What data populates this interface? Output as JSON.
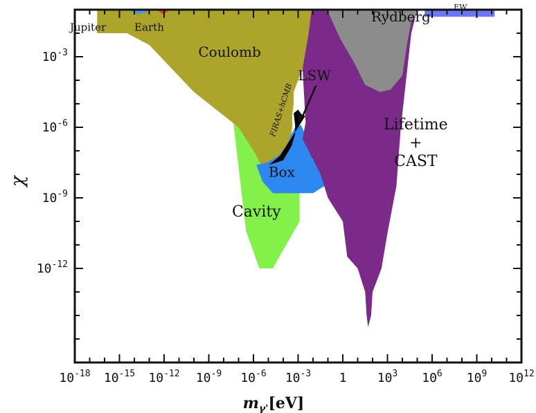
{
  "chart_data": {
    "type": "area",
    "title": "",
    "xlabel": "m_{γ'} [eV]",
    "ylabel": "χ",
    "xscale": "log",
    "yscale": "log",
    "xlim": [
      1e-18,
      1000000000000.0
    ],
    "ylim": [
      1e-16,
      0.1
    ],
    "x_ticks": [
      {
        "value": 1e-18,
        "base": "10",
        "exp": "-18"
      },
      {
        "value": 1e-15,
        "base": "10",
        "exp": "-15"
      },
      {
        "value": 1e-12,
        "base": "10",
        "exp": "-12"
      },
      {
        "value": 1e-09,
        "base": "10",
        "exp": "-9"
      },
      {
        "value": 1e-06,
        "base": "10",
        "exp": "-6"
      },
      {
        "value": 0.001,
        "base": "10",
        "exp": "-3"
      },
      {
        "value": 1,
        "base": "1",
        "exp": ""
      },
      {
        "value": 1000.0,
        "base": "10",
        "exp": "3"
      },
      {
        "value": 1000000.0,
        "base": "10",
        "exp": "6"
      },
      {
        "value": 1000000000.0,
        "base": "10",
        "exp": "9"
      },
      {
        "value": 1000000000000.0,
        "base": "10",
        "exp": "12"
      }
    ],
    "y_ticks": [
      {
        "value": 0.001,
        "base": "10",
        "exp": "-3"
      },
      {
        "value": 1e-06,
        "base": "10",
        "exp": "-6"
      },
      {
        "value": 1e-09,
        "base": "10",
        "exp": "-9"
      },
      {
        "value": 1e-12,
        "base": "10",
        "exp": "-12"
      }
    ],
    "axis_labels": {
      "x_main": "m",
      "x_sub": "γ'",
      "x_unit": "[eV]",
      "y": "χ"
    },
    "regions": [
      {
        "name": "Cavity",
        "color": "#84f04a",
        "label_at": [
          -5.8,
          -9.8
        ],
        "label_size": 22,
        "points": [
          [
            -7.5,
            -5
          ],
          [
            -4.7,
            -7.8
          ],
          [
            -2.9,
            -8.2
          ],
          [
            -2.9,
            -10.0
          ],
          [
            -4.7,
            -12.0
          ],
          [
            -5.6,
            -12.0
          ],
          [
            -6.5,
            -10.4
          ]
        ]
      },
      {
        "name": "Coulomb",
        "color": "#ada42b",
        "label_at": [
          -7.6,
          -3.0
        ],
        "label_size": 20,
        "points": [
          [
            -16.5,
            -1.0
          ],
          [
            -16.5,
            -2.0
          ],
          [
            -14.5,
            -2.0
          ],
          [
            -13.0,
            -2.5
          ],
          [
            -10,
            -4.5
          ],
          [
            -7,
            -6
          ],
          [
            -5.8,
            -7.2
          ],
          [
            -5.6,
            -7.5
          ],
          [
            -5.3,
            -7.6
          ],
          [
            -4.7,
            -7.6
          ],
          [
            -3.5,
            -7.0
          ],
          [
            -3.5,
            -6.5
          ],
          [
            -3.4,
            -6.0
          ],
          [
            -3.4,
            -5.5
          ],
          [
            -3.3,
            -5.0
          ],
          [
            -3.3,
            -4.5
          ],
          [
            -2.7,
            -3.5
          ],
          [
            -2.3,
            -2.0
          ],
          [
            -2.1,
            -1.0
          ],
          [
            -1.8,
            0
          ]
        ]
      },
      {
        "name": "Box",
        "color": "#2e88f2",
        "label_at": [
          -4.1,
          -8.1
        ],
        "label_size": 20,
        "points": [
          [
            -5.8,
            -7.6
          ],
          [
            -5.1,
            -7.5
          ],
          [
            -4.3,
            -7.2
          ],
          [
            -3.8,
            -6.8
          ],
          [
            -3.45,
            -6.3
          ],
          [
            -3.2,
            -6.0
          ],
          [
            -2.8,
            -5.9
          ],
          [
            -2.4,
            -6.5
          ],
          [
            -2.0,
            -7.4
          ],
          [
            -1.5,
            -7.6
          ],
          [
            -1.0,
            -8.4
          ],
          [
            -2.0,
            -8.8
          ],
          [
            -4.7,
            -8.8
          ],
          [
            -5.4,
            -8.3
          ]
        ]
      },
      {
        "name": "FIRAS+hCMB",
        "color": "#000000",
        "label_at": [
          -4.0,
          -5.3
        ],
        "label_size": 11,
        "label_rotate": -72,
        "points": [
          [
            -4.95,
            -7.6
          ],
          [
            -4.0,
            -7.4
          ],
          [
            -3.45,
            -6.8
          ],
          [
            -3.2,
            -6.3
          ],
          [
            -3.2,
            -5.9
          ],
          [
            -3.3,
            -5.4
          ],
          [
            -3.0,
            -5.25
          ],
          [
            -2.6,
            -5.6
          ],
          [
            -3.1,
            -6.1
          ],
          [
            -3.7,
            -6.7
          ],
          [
            -4.2,
            -7.2
          ]
        ]
      },
      {
        "name": "Lifetime + CAST",
        "color": "#7c2a8a",
        "label_at": [
          4.9,
          -6.8
        ],
        "label_size": 22,
        "line2": "+",
        "line3": "CAST",
        "points": [
          [
            -1.8,
            0
          ],
          [
            -2.1,
            -1.0
          ],
          [
            -2.3,
            -2.0
          ],
          [
            -2.7,
            -3.5
          ],
          [
            -2.5,
            -5.8
          ],
          [
            -2.7,
            -6.5
          ],
          [
            -1.5,
            -8.0
          ],
          [
            -1.0,
            -9.0
          ],
          [
            0.0,
            -10.0
          ],
          [
            0.3,
            -11.5
          ],
          [
            1.0,
            -12.0
          ],
          [
            1.5,
            -13.0
          ],
          [
            1.6,
            -14.0
          ],
          [
            1.7,
            -14.5
          ],
          [
            1.9,
            -14.0
          ],
          [
            2.0,
            -13.0
          ],
          [
            2.6,
            -12.0
          ],
          [
            3.0,
            -10.5
          ],
          [
            3.6,
            -8.5
          ],
          [
            3.9,
            -6.0
          ],
          [
            4.6,
            -2.0
          ],
          [
            5.0,
            -1.0
          ],
          [
            5.4,
            0
          ]
        ]
      },
      {
        "name": "Rydberg",
        "color": "#8c8c8c",
        "label_at": [
          3.9,
          -1.5
        ],
        "label_size": 20,
        "points": [
          [
            -1.5,
            0
          ],
          [
            -1.2,
            -0.8
          ],
          [
            -0.2,
            -2.2
          ],
          [
            0.8,
            -3.3
          ],
          [
            1.5,
            -4.2
          ],
          [
            2.5,
            -4.5
          ],
          [
            3.2,
            -4.4
          ],
          [
            4.0,
            -3.8
          ],
          [
            4.3,
            -2.5
          ],
          [
            4.6,
            -1.5
          ],
          [
            5.0,
            -1.2
          ],
          [
            5.4,
            0
          ]
        ]
      },
      {
        "name": "EW",
        "color": "#6b77f2",
        "label_at": [
          7.9,
          -1.0
        ],
        "label_size": 11,
        "points": [
          [
            5.5,
            -0.8
          ],
          [
            10.2,
            -0.8
          ],
          [
            10.2,
            -1.3
          ],
          [
            5.5,
            -1.3
          ]
        ]
      },
      {
        "name": "Jupiter",
        "color": "#4f96d3",
        "label_at": [
          -15.9,
          -1.9
        ],
        "label_size": 15,
        "label_anchor": "end",
        "points": [
          [
            -14.6,
            -0.6
          ],
          [
            -14.6,
            -0.9
          ],
          [
            -14.2,
            -1.1
          ],
          [
            -13.8,
            -1.2
          ],
          [
            -13.1,
            -1.1
          ],
          [
            -12.9,
            -0.8
          ],
          [
            -12.8,
            -0.6
          ]
        ]
      },
      {
        "name": "Earth",
        "color": "#e54026",
        "label_at": [
          -13.0,
          -1.9
        ],
        "label_size": 15,
        "points": [
          [
            -12.7,
            -0.6
          ],
          [
            -12.5,
            -1.0
          ],
          [
            -12.1,
            -1.2
          ],
          [
            -11.8,
            -1.1
          ],
          [
            -11.6,
            -0.8
          ],
          [
            -11.5,
            -0.6
          ]
        ]
      }
    ],
    "annotations": [
      {
        "text": "LSW",
        "at": [
          -1.9,
          -4.0
        ],
        "size": 20,
        "arrow_to": [
          -3.0,
          -5.8
        ]
      }
    ]
  }
}
